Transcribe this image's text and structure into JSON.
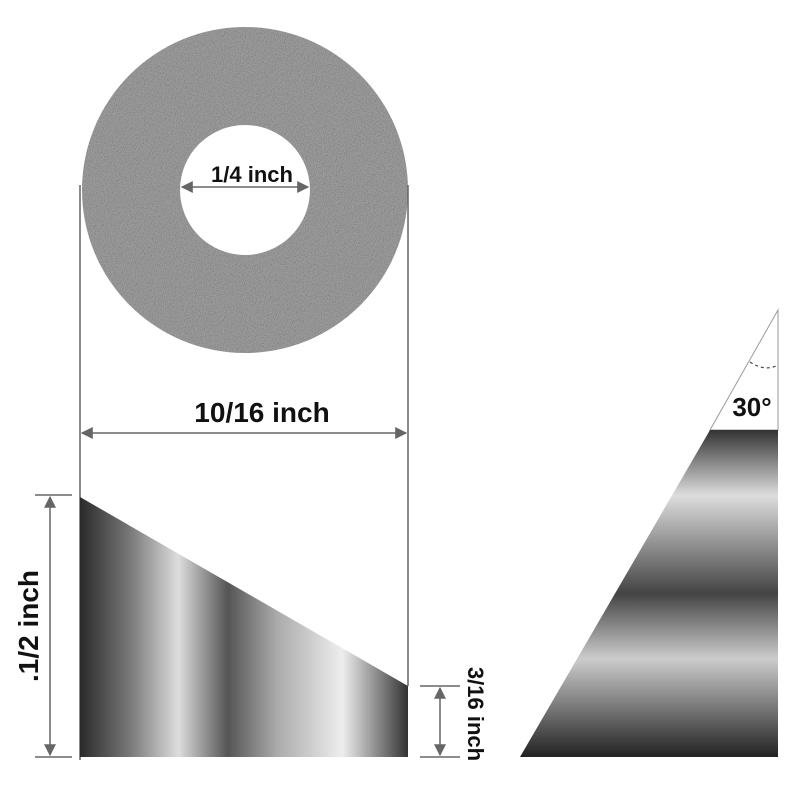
{
  "labels": {
    "inner_diameter": "1/4 inch",
    "outer_diameter": "10/16 inch",
    "height": ".1/2 inch",
    "short_side": "3/16 inch",
    "angle": "30°"
  }
}
